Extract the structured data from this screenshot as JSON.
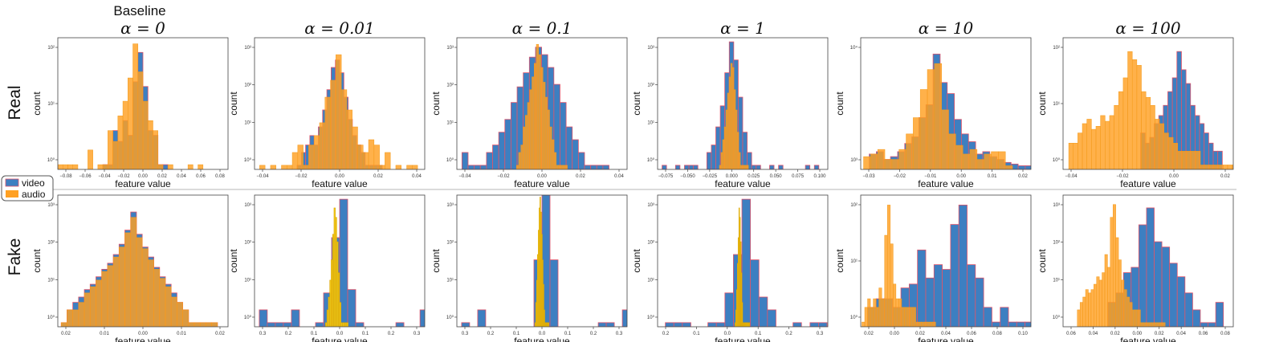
{
  "figure": {
    "column_super_title": "Baseline",
    "row_labels": [
      "Real",
      "Fake"
    ],
    "legend": [
      {
        "label": "video",
        "color": "#3d7fc1"
      },
      {
        "label": "audio",
        "color": "#ffa022"
      }
    ],
    "colors": {
      "video": "#3d7fc1",
      "audio": "#ffa022",
      "overlap": "#c57a3e",
      "edge": "#e0556a",
      "fake_audio_narrow": "#f2c80f"
    }
  },
  "chart_data": [
    {
      "type": "bar",
      "row": "Real",
      "col": 0,
      "title": "α = 0",
      "xlabel": "feature value",
      "ylabel": "count",
      "yscale": "log",
      "xticklabels": [
        "−0.08",
        "−0.06",
        "−0.04",
        "−0.02",
        "0.00",
        "0.02",
        "0.04",
        "0.06",
        "0.08"
      ],
      "yticklabels": [
        "10⁰",
        "10¹",
        "10²"
      ],
      "xlim": [
        -0.085,
        0.085
      ],
      "ylim": [
        0.8,
        400
      ],
      "series": [
        {
          "name": "video",
          "bin_start": -0.04,
          "bin_width": 0.005,
          "counts": [
            1,
            1,
            5,
            3,
            8,
            4,
            50,
            200,
            40,
            5,
            4,
            1,
            1
          ]
        },
        {
          "name": "audio",
          "bin_start": -0.085,
          "bin_width": 0.005,
          "counts": [
            1,
            1,
            1,
            1,
            0,
            0,
            2,
            0,
            1,
            1,
            5,
            3,
            10,
            20,
            60,
            300,
            80,
            20,
            8,
            5,
            1,
            0,
            1,
            0,
            0,
            0,
            1,
            0,
            1
          ]
        }
      ]
    },
    {
      "type": "bar",
      "row": "Real",
      "col": 1,
      "title": "α = 0.01",
      "xlabel": "feature value",
      "ylabel": "count",
      "yscale": "log",
      "xticklabels": [
        "−0.04",
        "−0.02",
        "0.00",
        "0.02",
        "0.04"
      ],
      "yticklabels": [
        "10⁰",
        "10¹",
        "10²",
        "10³"
      ],
      "xlim": [
        -0.05,
        0.05
      ],
      "ylim": [
        0.8,
        1000
      ],
      "series": [
        {
          "name": "video",
          "bin_start": -0.025,
          "bin_width": 0.0025,
          "counts": [
            1,
            2,
            3,
            5,
            3,
            8,
            20,
            60,
            200,
            300,
            150,
            40,
            12,
            5,
            3,
            2,
            1,
            1,
            1,
            1
          ]
        },
        {
          "name": "audio",
          "bin_start": -0.047,
          "bin_width": 0.0032,
          "counts": [
            1,
            0,
            1,
            0,
            1,
            1,
            2,
            3,
            1,
            3,
            5,
            10,
            40,
            100,
            400,
            60,
            20,
            8,
            3,
            2,
            4,
            3,
            1,
            2,
            0,
            1,
            0,
            1,
            1
          ]
        }
      ]
    },
    {
      "type": "bar",
      "row": "Real",
      "col": 2,
      "title": "α = 0.1",
      "xlabel": "feature value",
      "ylabel": "count",
      "yscale": "log",
      "xticklabels": [
        "−0.04",
        "−0.02",
        "0.00",
        "0.02",
        "0.04"
      ],
      "yticklabels": [
        "10⁰",
        "10¹",
        "10²",
        "10³"
      ],
      "xlim": [
        -0.05,
        0.05
      ],
      "ylim": [
        0.8,
        1000
      ],
      "series": [
        {
          "name": "video",
          "bin_start": -0.047,
          "bin_width": 0.0036,
          "counts": [
            2,
            1,
            1,
            1,
            2,
            3,
            6,
            12,
            30,
            70,
            150,
            350,
            600,
            400,
            200,
            80,
            30,
            8,
            4,
            2,
            1,
            1,
            1,
            1
          ]
        },
        {
          "name": "audio",
          "bin_start": -0.015,
          "bin_width": 0.0013,
          "counts": [
            1,
            2,
            3,
            8,
            15,
            30,
            60,
            120,
            250,
            700,
            400,
            200,
            90,
            40,
            20,
            8,
            4,
            2,
            1,
            1,
            1,
            1,
            1
          ]
        }
      ]
    },
    {
      "type": "bar",
      "row": "Real",
      "col": 3,
      "title": "α = 1",
      "xlabel": "feature value",
      "ylabel": "count",
      "yscale": "log",
      "xticklabels": [
        "−0.075",
        "−0.050",
        "−0.025",
        "0.000",
        "0.025",
        "0.050",
        "0.075",
        "0.100"
      ],
      "yticklabels": [
        "10⁰",
        "10¹",
        "10²",
        "10³"
      ],
      "xlim": [
        -0.085,
        0.105
      ],
      "ylim": [
        0.8,
        1000
      ],
      "series": [
        {
          "name": "video",
          "bin_start": -0.08,
          "bin_width": 0.005,
          "counts": [
            1,
            0,
            0,
            1,
            0,
            1,
            1,
            1,
            0,
            0,
            2,
            3,
            8,
            25,
            150,
            800,
            300,
            40,
            6,
            2,
            1,
            1,
            0,
            0,
            1,
            0,
            1,
            0,
            0,
            0,
            0,
            0,
            1,
            0,
            1,
            0,
            0
          ]
        },
        {
          "name": "audio",
          "bin_start": -0.016,
          "bin_width": 0.0018,
          "counts": [
            1,
            2,
            4,
            8,
            20,
            50,
            120,
            250,
            200,
            60,
            20,
            6,
            2,
            1,
            1,
            1,
            1,
            1
          ]
        }
      ]
    },
    {
      "type": "bar",
      "row": "Real",
      "col": 4,
      "title": "α = 10",
      "xlabel": "feature value",
      "ylabel": "count",
      "yscale": "log",
      "xticklabels": [
        "−0.03",
        "−0.02",
        "−0.01",
        "0.00",
        "0.01",
        "0.02"
      ],
      "yticklabels": [
        "10³",
        "10⁴"
      ],
      "xlim": [
        -0.03,
        0.03
      ],
      "ylim": [
        900,
        40000
      ],
      "series": [
        {
          "name": "video",
          "bin_start": -0.027,
          "bin_width": 0.0025,
          "counts": [
            1400,
            1500,
            1200,
            1300,
            1500,
            1900,
            2300,
            4000,
            5800,
            25000,
            11000,
            8000,
            3800,
            2500,
            2000,
            1400,
            1500,
            1300,
            1200,
            1100,
            1050,
            1000,
            1000
          ]
        },
        {
          "name": "audio",
          "bin_start": -0.029,
          "bin_width": 0.0025,
          "counts": [
            1300,
            1400,
            1600,
            1200,
            1200,
            1600,
            2500,
            4000,
            9000,
            16000,
            19000,
            5000,
            2500,
            1800,
            1400,
            1600,
            1200,
            1400,
            1500,
            1500,
            1000
          ]
        }
      ]
    },
    {
      "type": "bar",
      "row": "Real",
      "col": 5,
      "title": "α = 100",
      "xlabel": "feature value",
      "ylabel": "count",
      "yscale": "log",
      "xticklabels": [
        "−0.04",
        "−0.02",
        "0.00",
        "0.02"
      ],
      "yticklabels": [
        "10⁰",
        "10¹",
        "10²"
      ],
      "xlim": [
        -0.055,
        0.035
      ],
      "ylim": [
        0.8,
        600
      ],
      "series": [
        {
          "name": "video",
          "bin_start": -0.014,
          "bin_width": 0.0024,
          "counts": [
            5,
            3,
            4,
            8,
            12,
            20,
            40,
            80,
            300,
            120,
            60,
            20,
            12,
            8,
            5,
            3,
            2,
            2
          ]
        },
        {
          "name": "audio",
          "bin_start": -0.052,
          "bin_width": 0.0024,
          "counts": [
            3,
            3,
            5,
            8,
            10,
            6,
            7,
            12,
            9,
            12,
            20,
            40,
            80,
            300,
            200,
            150,
            40,
            30,
            20,
            10,
            8,
            5,
            4,
            3,
            2,
            2,
            2,
            2,
            2,
            1,
            1,
            1,
            1,
            1,
            1,
            1,
            1,
            1
          ]
        }
      ]
    },
    {
      "type": "bar",
      "row": "Fake",
      "col": 0,
      "title": "",
      "xlabel": "feature value",
      "ylabel": "count",
      "yscale": "log",
      "xticklabels": [
        "0.02",
        "0.01",
        "0.00",
        "0.01",
        "0.02"
      ],
      "yticklabels": [
        "10⁰",
        "10¹",
        "10²",
        "10³"
      ],
      "xlim": [
        -0.025,
        0.025
      ],
      "ylim": [
        0.8,
        1000
      ],
      "series": [
        {
          "name": "video",
          "bin_start": -0.024,
          "bin_width": 0.0017,
          "counts": [
            1,
            2,
            3,
            4,
            6,
            8,
            12,
            18,
            25,
            40,
            70,
            150,
            400,
            120,
            60,
            35,
            20,
            12,
            8,
            5,
            3,
            2,
            1,
            1,
            1,
            1,
            1
          ]
        },
        {
          "name": "audio",
          "bin_start": -0.024,
          "bin_width": 0.0017,
          "counts": [
            1,
            2,
            2,
            3,
            5,
            7,
            10,
            16,
            22,
            35,
            60,
            130,
            300,
            100,
            55,
            30,
            18,
            11,
            7,
            4,
            3,
            2,
            1,
            1,
            1,
            1,
            1
          ]
        }
      ]
    },
    {
      "type": "bar",
      "row": "Fake",
      "col": 1,
      "title": "",
      "xlabel": "feature value",
      "ylabel": "count",
      "yscale": "log",
      "xticklabels": [
        "0.3",
        "0.2",
        "0.1",
        "0.0",
        "0.1",
        "0.2",
        "0.3"
      ],
      "yticklabels": [
        "10⁰",
        "10¹",
        "10²",
        "10³"
      ],
      "xlim": [
        -0.36,
        0.36
      ],
      "ylim": [
        0.8,
        1000
      ],
      "series": [
        {
          "name": "video",
          "bin_start": -0.34,
          "bin_width": 0.034,
          "counts": [
            2,
            1,
            1,
            1,
            2,
            0,
            0,
            1,
            5,
            100,
            800,
            6,
            1,
            0,
            0,
            0,
            0,
            1,
            0,
            0,
            2
          ]
        },
        {
          "name": "audio",
          "bin_start": -0.06,
          "bin_width": 0.006,
          "counts": [
            1,
            2,
            4,
            10,
            30,
            120,
            500,
            300,
            80,
            15,
            3,
            1,
            1,
            1,
            1,
            1
          ]
        }
      ]
    },
    {
      "type": "bar",
      "row": "Fake",
      "col": 2,
      "title": "",
      "xlabel": "feature value",
      "ylabel": "count",
      "yscale": "log",
      "xticklabels": [
        "0.3",
        "0.2",
        "0.1",
        "0.0",
        "0.1",
        "0.2",
        "0.3"
      ],
      "yticklabels": [
        "10⁰",
        "10¹",
        "10²",
        "10³"
      ],
      "xlim": [
        -0.36,
        0.36
      ],
      "ylim": [
        0.8,
        1000
      ],
      "series": [
        {
          "name": "video",
          "bin_start": -0.34,
          "bin_width": 0.034,
          "counts": [
            1,
            0,
            2,
            0,
            0,
            0,
            0,
            0,
            0,
            30,
            1000,
            30,
            0,
            0,
            0,
            0,
            0,
            1,
            1,
            0,
            2
          ]
        },
        {
          "name": "audio",
          "bin_start": -0.03,
          "bin_width": 0.0035,
          "counts": [
            1,
            3,
            10,
            40,
            150,
            500,
            900,
            400,
            120,
            30,
            8,
            2,
            1,
            1,
            1,
            1,
            1
          ]
        }
      ]
    },
    {
      "type": "bar",
      "row": "Fake",
      "col": 3,
      "title": "",
      "xlabel": "feature value",
      "ylabel": "count",
      "yscale": "log",
      "xticklabels": [
        "0.2",
        "0.1",
        "0.0",
        "0.1",
        "0.2",
        "0.3"
      ],
      "yticklabels": [
        "10⁰",
        "10¹",
        "10²",
        "10³"
      ],
      "xlim": [
        -0.33,
        0.33
      ],
      "ylim": [
        0.8,
        1000
      ],
      "series": [
        {
          "name": "video",
          "bin_start": -0.3,
          "bin_width": 0.033,
          "counts": [
            1,
            1,
            1,
            0,
            0,
            1,
            1,
            5,
            40,
            800,
            30,
            4,
            2,
            0,
            0,
            1,
            0,
            1,
            1
          ]
        },
        {
          "name": "audio",
          "bin_start": -0.03,
          "bin_width": 0.003,
          "counts": [
            1,
            2,
            6,
            25,
            100,
            500,
            300,
            80,
            15,
            3,
            1,
            1,
            1,
            1,
            1,
            1,
            1,
            1,
            1
          ]
        }
      ]
    },
    {
      "type": "bar",
      "row": "Fake",
      "col": 4,
      "title": "",
      "xlabel": "feature value",
      "ylabel": "count",
      "yscale": "log",
      "xticklabels": [
        "0.02",
        "0.00",
        "0.02",
        "0.04",
        "0.06",
        "0.08",
        "0.10"
      ],
      "yticklabels": [
        "10⁰",
        "10¹",
        "10²"
      ],
      "xlim": [
        -0.034,
        0.11
      ],
      "ylim": [
        0.8,
        400
      ],
      "series": [
        {
          "name": "video",
          "bin_start": -0.028,
          "bin_width": 0.007,
          "counts": [
            2,
            3,
            3,
            2,
            5,
            6,
            30,
            8,
            15,
            12,
            100,
            250,
            15,
            8,
            2,
            1,
            2,
            1,
            1,
            1,
            3
          ]
        },
        {
          "name": "audio",
          "bin_start": -0.033,
          "bin_width": 0.0024,
          "counts": [
            1,
            2,
            3,
            2,
            3,
            2,
            5,
            3,
            60,
            250,
            40,
            6,
            3,
            3,
            2,
            2,
            2,
            2,
            2,
            1,
            1,
            1,
            1,
            1,
            1,
            1
          ]
        }
      ]
    },
    {
      "type": "bar",
      "row": "Fake",
      "col": 5,
      "title": "",
      "xlabel": "feature value",
      "ylabel": "count",
      "yscale": "log",
      "xticklabels": [
        "0.06",
        "0.04",
        "0.02",
        "0.00",
        "0.02",
        "0.04",
        "0.06",
        "0.08"
      ],
      "yticklabels": [
        "10⁰",
        "10¹",
        "10²",
        "10³"
      ],
      "xlim": [
        -0.065,
        0.09
      ],
      "ylim": [
        0.8,
        1000
      ],
      "series": [
        {
          "name": "video",
          "bin_start": -0.024,
          "bin_width": 0.007,
          "counts": [
            3,
            5,
            15,
            20,
            200,
            500,
            80,
            60,
            25,
            12,
            5,
            2,
            1,
            1,
            3
          ]
        },
        {
          "name": "audio",
          "bin_start": -0.052,
          "bin_width": 0.0025,
          "counts": [
            2,
            3,
            4,
            6,
            5,
            6,
            8,
            12,
            10,
            15,
            40,
            20,
            300,
            600,
            100,
            30,
            10,
            6,
            4,
            3,
            2,
            2,
            2,
            1,
            1,
            1,
            1,
            1,
            1,
            1,
            1,
            1
          ]
        }
      ]
    }
  ]
}
